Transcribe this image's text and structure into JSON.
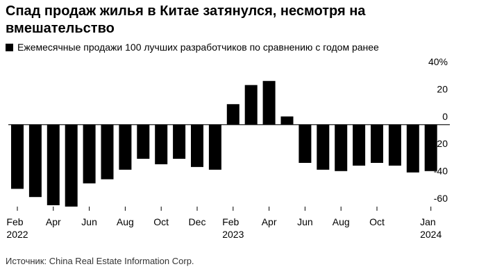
{
  "chart_data": {
    "type": "bar",
    "title": "Спад продаж жилья в Китае затянулся, несмотря на вмешательство",
    "legend": "Ежемесячные продажи 100 лучших разработчиков по сравнению с годом ранее",
    "source": "Источник: China Real Estate Information Corp.",
    "categories": [
      "Feb\n2022",
      null,
      "Apr",
      null,
      "Jun",
      null,
      "Aug",
      null,
      "Oct",
      null,
      "Dec",
      null,
      "Feb\n2023",
      null,
      "Apr",
      null,
      "Jun",
      null,
      "Aug",
      null,
      "Oct",
      null,
      null,
      "Jan\n2024"
    ],
    "values": [
      -47,
      -53,
      -59,
      -60,
      -43,
      -40,
      -33,
      -25,
      -29,
      -25,
      -31,
      -33,
      15,
      29,
      32,
      6,
      -28,
      -33,
      -34,
      -30,
      -28,
      -30,
      -35,
      -34
    ],
    "color": "#000000",
    "ylim": [
      -60,
      40
    ],
    "yticks": [
      -60,
      -40,
      -20,
      0,
      20,
      {
        "value": 40,
        "label": "40%"
      }
    ],
    "grid": false
  }
}
